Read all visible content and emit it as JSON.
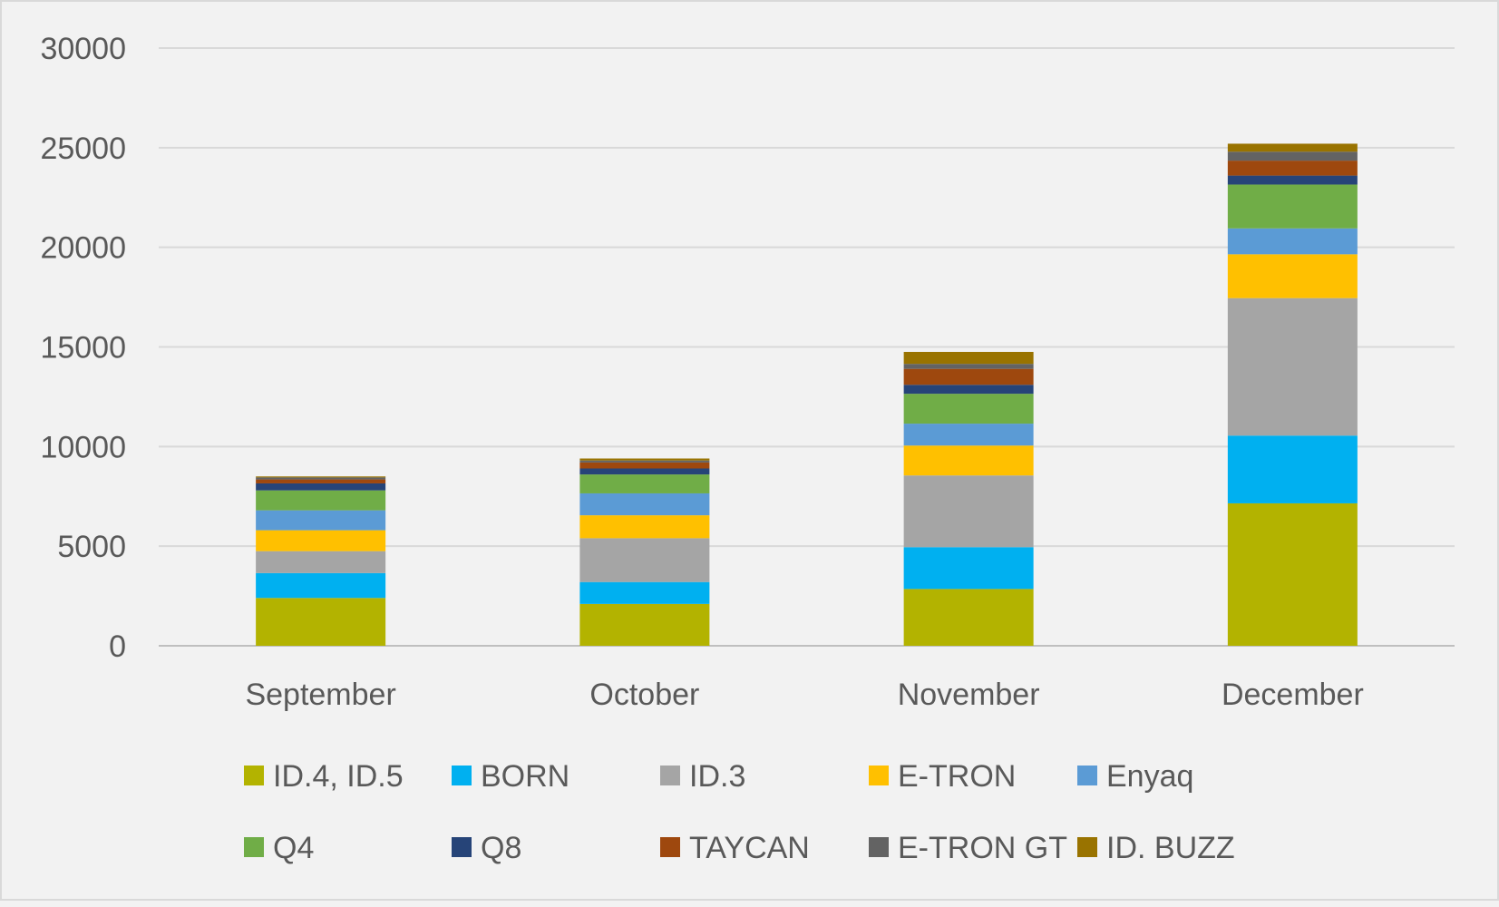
{
  "chart_data": {
    "type": "bar",
    "stacked": true,
    "title": "",
    "xlabel": "",
    "ylabel": "",
    "ylim": [
      0,
      30000
    ],
    "y_ticks": [
      0,
      5000,
      10000,
      15000,
      20000,
      25000,
      30000
    ],
    "grid": true,
    "legend_position": "bottom",
    "categories": [
      "September",
      "October",
      "November",
      "December"
    ],
    "series": [
      {
        "name": "ID.4, ID.5",
        "color": "#b3b300",
        "values": [
          2400,
          2100,
          2850,
          7150
        ]
      },
      {
        "name": "BORN",
        "color": "#00b0f0",
        "values": [
          1250,
          1100,
          2100,
          3400
        ]
      },
      {
        "name": "ID.3",
        "color": "#a5a5a5",
        "values": [
          1100,
          2200,
          3600,
          6900
        ]
      },
      {
        "name": "E-TRON",
        "color": "#ffc000",
        "values": [
          1050,
          1150,
          1500,
          2200
        ]
      },
      {
        "name": "Enyaq",
        "color": "#5b9bd5",
        "values": [
          1000,
          1100,
          1100,
          1300
        ]
      },
      {
        "name": "Q4",
        "color": "#70ad47",
        "values": [
          1000,
          950,
          1500,
          2200
        ]
      },
      {
        "name": "Q8",
        "color": "#264478",
        "values": [
          350,
          300,
          450,
          450
        ]
      },
      {
        "name": "TAYCAN",
        "color": "#9e480e",
        "values": [
          200,
          300,
          800,
          750
        ]
      },
      {
        "name": "E-TRON GT",
        "color": "#636363",
        "values": [
          100,
          100,
          250,
          450
        ]
      },
      {
        "name": "ID. BUZZ",
        "color": "#997300",
        "values": [
          50,
          100,
          600,
          400
        ]
      }
    ]
  }
}
